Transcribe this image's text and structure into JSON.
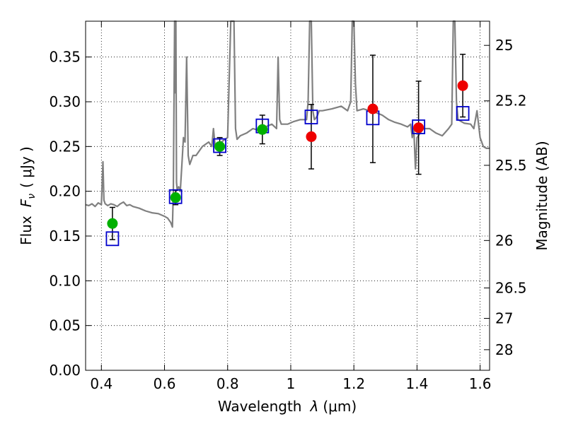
{
  "chart_data": {
    "type": "scatter",
    "title": "",
    "xlabel_text": "Wavelength",
    "xlabel_symbol": "λ",
    "xlabel_unit": "(μm)",
    "ylabel_text": "Flux",
    "ylabel_symbol": "F",
    "ylabel_subscript": "ν",
    "ylabel_unit": "( μJy )",
    "y2label": "Magnitude (AB)",
    "xlim": [
      0.35,
      1.63
    ],
    "ylim": [
      0.0,
      0.39
    ],
    "xticks": [
      0.4,
      0.6,
      0.8,
      1.0,
      1.2,
      1.4,
      1.6
    ],
    "xtick_labels": [
      "0.4",
      "0.6",
      "0.8",
      "1",
      "1.2",
      "1.4",
      "1.6"
    ],
    "yticks": [
      0.0,
      0.05,
      0.1,
      0.15,
      0.2,
      0.25,
      0.3,
      0.35
    ],
    "ytick_labels": [
      "0.00",
      "0.05",
      "0.10",
      "0.15",
      "0.20",
      "0.25",
      "0.30",
      "0.35"
    ],
    "y2ticks": [
      {
        "flux": 0.363,
        "label": "25"
      },
      {
        "flux": 0.301,
        "label": "25.2"
      },
      {
        "flux": 0.229,
        "label": "25.5"
      },
      {
        "flux": 0.145,
        "label": "26"
      },
      {
        "flux": 0.092,
        "label": "26.5"
      },
      {
        "flux": 0.058,
        "label": "27"
      },
      {
        "flux": 0.023,
        "label": "28"
      }
    ],
    "grid": true,
    "series": [
      {
        "kind": "spectrum",
        "color": "#808080",
        "x": [
          0.35,
          0.36,
          0.37,
          0.38,
          0.39,
          0.4,
          0.405,
          0.408,
          0.412,
          0.42,
          0.43,
          0.44,
          0.45,
          0.46,
          0.47,
          0.48,
          0.49,
          0.5,
          0.52,
          0.54,
          0.56,
          0.58,
          0.6,
          0.61,
          0.62,
          0.625,
          0.628,
          0.632,
          0.634,
          0.636,
          0.638,
          0.64,
          0.645,
          0.65,
          0.655,
          0.66,
          0.665,
          0.67,
          0.675,
          0.68,
          0.69,
          0.7,
          0.72,
          0.74,
          0.75,
          0.755,
          0.76,
          0.765,
          0.77,
          0.78,
          0.8,
          0.81,
          0.815,
          0.82,
          0.825,
          0.83,
          0.84,
          0.86,
          0.88,
          0.9,
          0.92,
          0.94,
          0.955,
          0.96,
          0.965,
          0.97,
          0.99,
          1.01,
          1.03,
          1.05,
          1.055,
          1.06,
          1.065,
          1.07,
          1.075,
          1.08,
          1.085,
          1.09,
          1.1,
          1.13,
          1.16,
          1.18,
          1.19,
          1.195,
          1.2,
          1.205,
          1.21,
          1.23,
          1.25,
          1.27,
          1.29,
          1.31,
          1.33,
          1.35,
          1.37,
          1.38,
          1.385,
          1.39,
          1.395,
          1.4,
          1.42,
          1.44,
          1.46,
          1.48,
          1.5,
          1.51,
          1.515,
          1.52,
          1.525,
          1.53,
          1.55,
          1.57,
          1.58,
          1.59,
          1.6,
          1.61,
          1.62,
          1.63
        ],
        "y": [
          0.185,
          0.184,
          0.186,
          0.183,
          0.187,
          0.185,
          0.233,
          0.19,
          0.186,
          0.184,
          0.186,
          0.185,
          0.183,
          0.186,
          0.188,
          0.184,
          0.185,
          0.183,
          0.181,
          0.178,
          0.176,
          0.175,
          0.172,
          0.17,
          0.165,
          0.16,
          0.2,
          0.39,
          0.31,
          0.39,
          0.21,
          0.202,
          0.205,
          0.2,
          0.23,
          0.26,
          0.255,
          0.35,
          0.24,
          0.23,
          0.24,
          0.24,
          0.25,
          0.255,
          0.25,
          0.27,
          0.252,
          0.25,
          0.253,
          0.255,
          0.26,
          0.39,
          0.39,
          0.39,
          0.27,
          0.258,
          0.262,
          0.265,
          0.27,
          0.268,
          0.272,
          0.275,
          0.27,
          0.35,
          0.28,
          0.275,
          0.275,
          0.278,
          0.28,
          0.28,
          0.3,
          0.39,
          0.39,
          0.29,
          0.28,
          0.282,
          0.285,
          0.29,
          0.29,
          0.292,
          0.295,
          0.29,
          0.3,
          0.39,
          0.39,
          0.32,
          0.29,
          0.292,
          0.29,
          0.288,
          0.285,
          0.28,
          0.277,
          0.275,
          0.272,
          0.275,
          0.26,
          0.27,
          0.225,
          0.26,
          0.27,
          0.27,
          0.265,
          0.262,
          0.27,
          0.275,
          0.39,
          0.39,
          0.3,
          0.28,
          0.276,
          0.275,
          0.27,
          0.29,
          0.26,
          0.25,
          0.248,
          0.248
        ]
      },
      {
        "kind": "model-boxes",
        "color": "#0000cc",
        "x": [
          0.435,
          0.635,
          0.775,
          0.91,
          1.065,
          1.26,
          1.405,
          1.545
        ],
        "y": [
          0.147,
          0.194,
          0.251,
          0.273,
          0.283,
          0.282,
          0.272,
          0.287
        ]
      },
      {
        "kind": "detections",
        "color": "#00b000",
        "x": [
          0.435,
          0.635,
          0.775,
          0.91
        ],
        "y": [
          0.164,
          0.193,
          0.25,
          0.269
        ],
        "yerr": [
          0.018,
          0.008,
          0.01,
          0.016
        ]
      },
      {
        "kind": "nir-measurements",
        "color": "#ee0000",
        "x": [
          1.065,
          1.26,
          1.405,
          1.545
        ],
        "y": [
          0.261,
          0.292,
          0.271,
          0.318
        ],
        "yerr": [
          0.036,
          0.06,
          0.052,
          0.035
        ]
      }
    ]
  }
}
